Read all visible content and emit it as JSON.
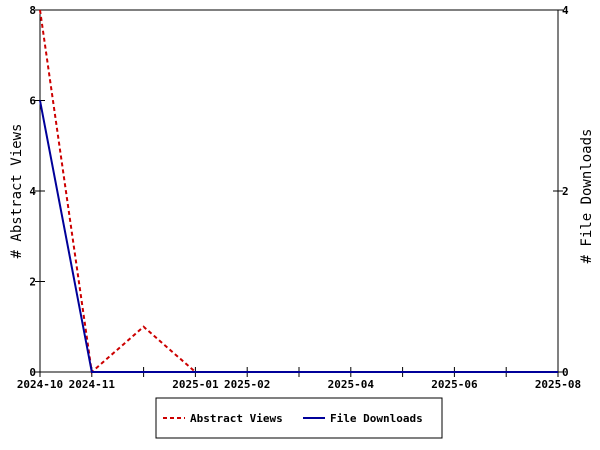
{
  "chart_data": {
    "type": "line",
    "x": [
      "2024-10",
      "2024-11",
      "2024-12",
      "2025-01",
      "2025-02",
      "2025-03",
      "2025-04",
      "2025-05",
      "2025-06",
      "2025-07",
      "2025-08"
    ],
    "x_tick_labels": [
      "2024-10",
      "2024-11",
      "",
      "2025-01",
      "2025-02",
      "",
      "2025-04",
      "",
      "2025-06",
      "",
      "2025-08"
    ],
    "series": [
      {
        "name": "Abstract Views",
        "axis": "left",
        "color": "#cc0000",
        "dash": "dashed",
        "values": [
          8,
          0,
          1,
          0,
          0,
          0,
          0,
          0,
          0,
          0,
          0
        ]
      },
      {
        "name": "File Downloads",
        "axis": "right",
        "color": "#000099",
        "dash": "solid",
        "values": [
          3,
          0,
          0,
          0,
          0,
          0,
          0,
          0,
          0,
          0,
          0
        ]
      }
    ],
    "ylabel_left": "# Abstract Views",
    "ylabel_right": "# File Downloads",
    "ylim_left": [
      0,
      8
    ],
    "ylim_right": [
      0,
      4
    ],
    "yticks_left": [
      "0",
      "2",
      "4",
      "6",
      "8"
    ],
    "yticks_right": [
      "0",
      "2",
      "4"
    ],
    "legend_position": "bottom-center",
    "grid": false
  }
}
